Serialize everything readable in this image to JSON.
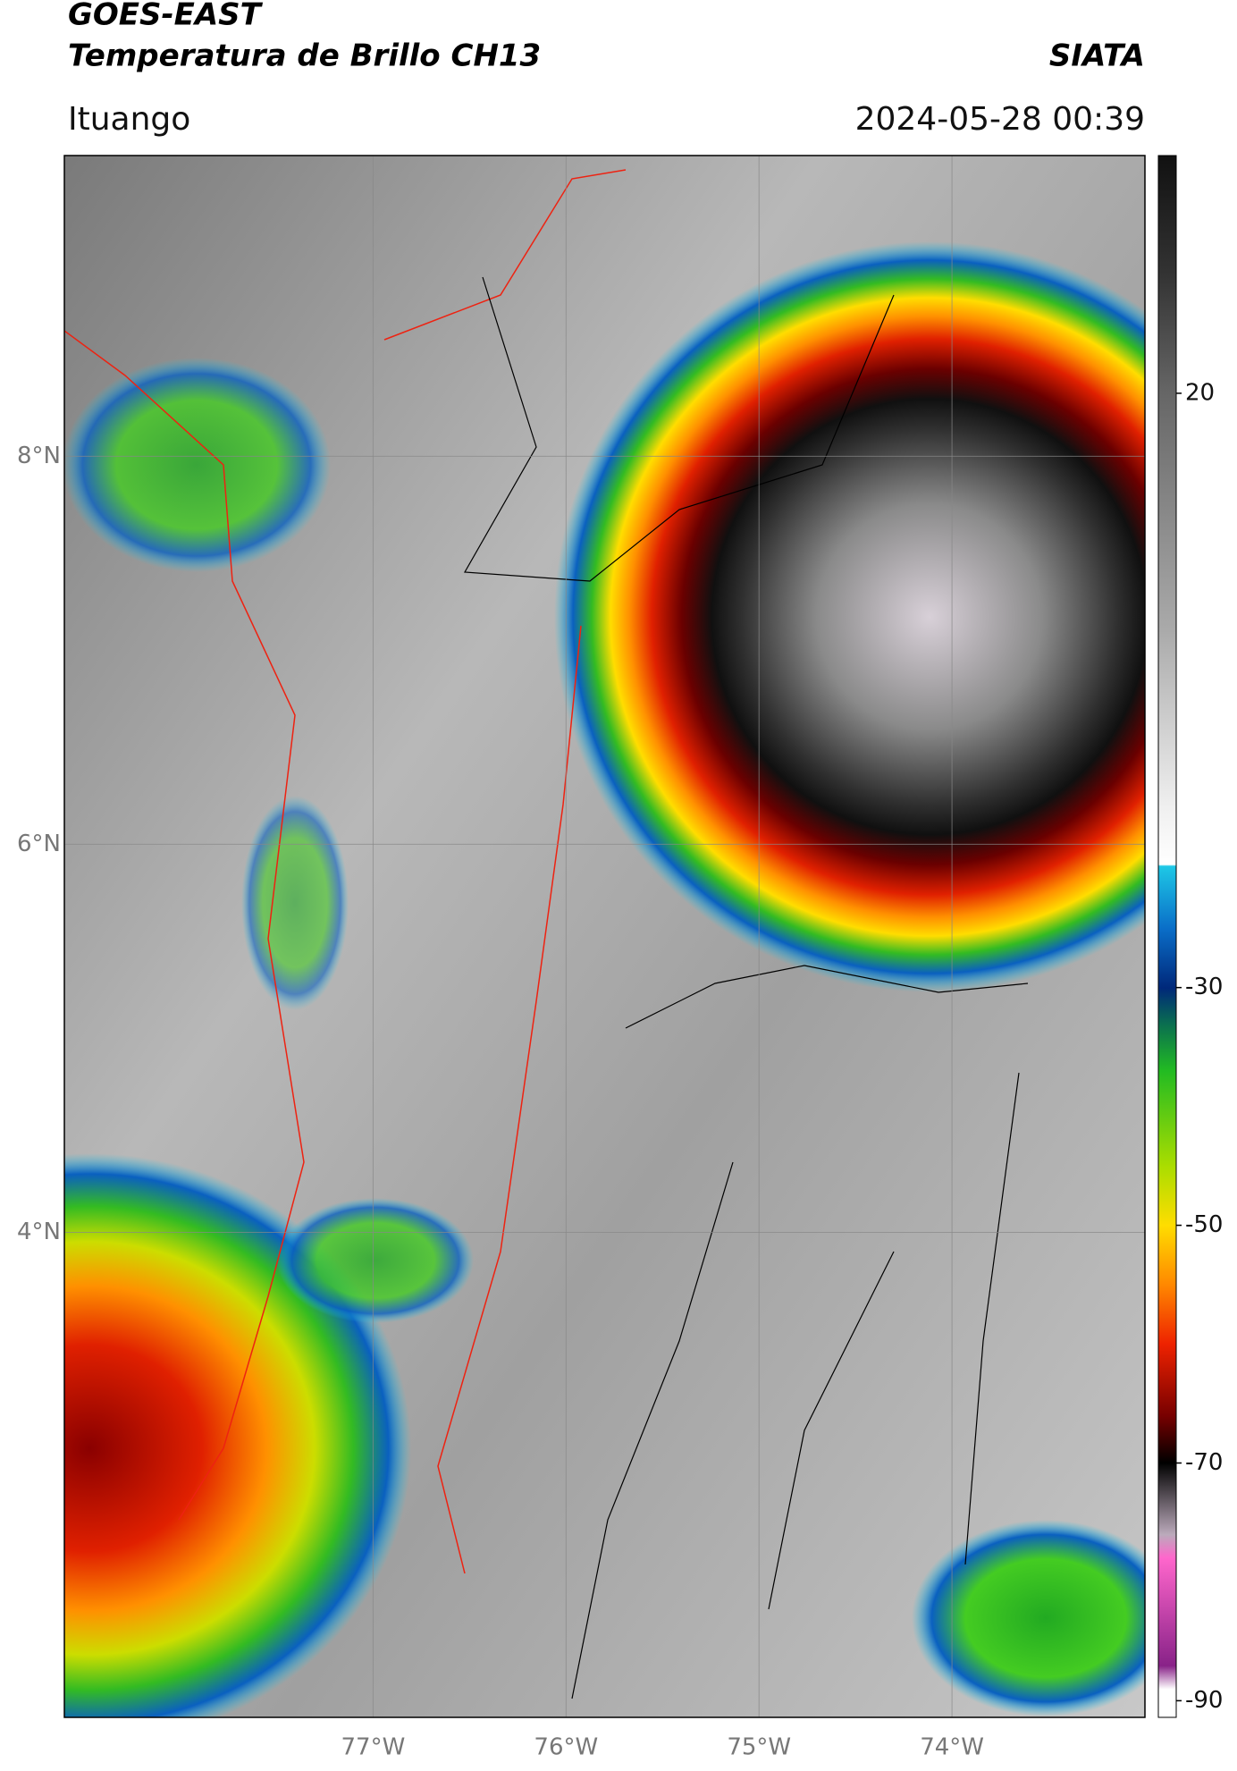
{
  "header": {
    "satellite": "GOES-EAST",
    "product": "Temperatura de Brillo CH13",
    "source": "SIATA",
    "location": "Ituango",
    "datetime": "2024-05-28 00:39"
  },
  "map": {
    "xlim": [
      -78.6,
      -73.0
    ],
    "ylim": [
      1.5,
      9.55
    ],
    "lat_ticks": [
      {
        "value": 4,
        "label": "4°N"
      },
      {
        "value": 6,
        "label": "6°N"
      },
      {
        "value": 8,
        "label": "8°N"
      }
    ],
    "lon_ticks": [
      {
        "value": -77,
        "label": "77°W"
      },
      {
        "value": -76,
        "label": "76°W"
      },
      {
        "value": -75,
        "label": "75°W"
      },
      {
        "value": -74,
        "label": "74°W"
      }
    ],
    "grid": true
  },
  "colorbar": {
    "range": [
      -91.4,
      40
    ],
    "ticks": [
      20,
      -30,
      -50,
      -70,
      -90
    ]
  }
}
